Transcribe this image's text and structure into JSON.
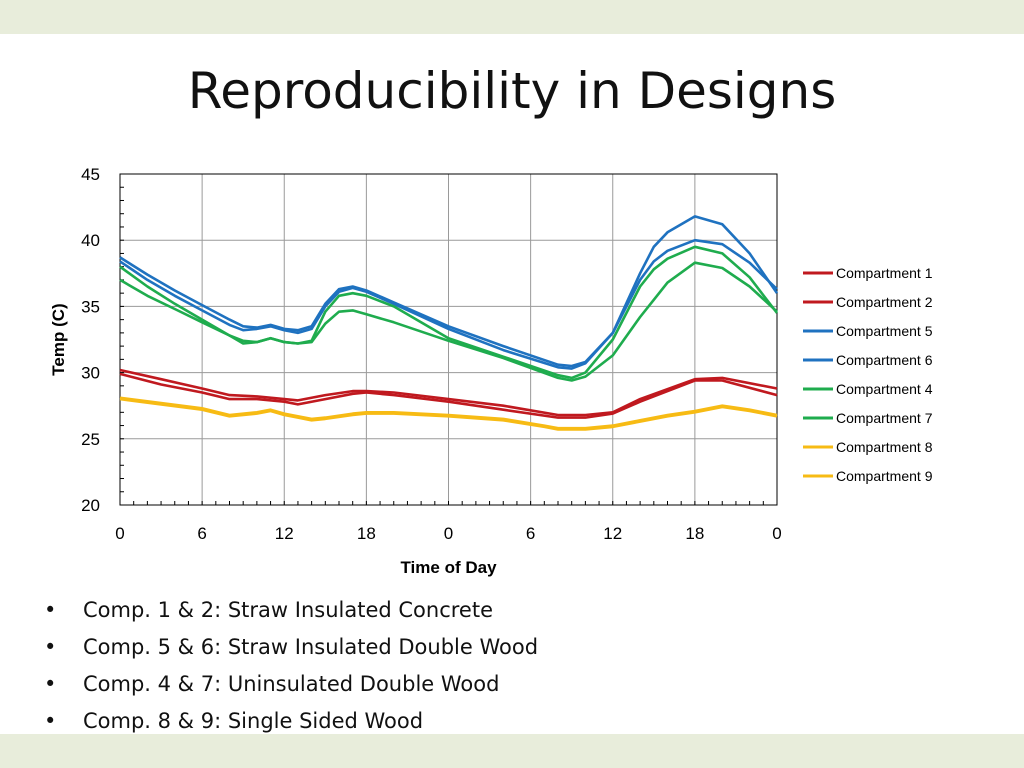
{
  "slide": {
    "title": "Reproducibility in Designs",
    "bullets": [
      "Comp. 1 & 2: Straw Insulated Concrete",
      "Comp. 5 & 6: Straw Insulated Double Wood",
      "Comp. 4 & 7: Uninsulated Double Wood",
      "Comp. 8 & 9: Single Sided Wood"
    ],
    "band_color": "#e8eddb"
  },
  "chart_data": {
    "type": "line",
    "title": "",
    "xlabel": "Time of Day",
    "ylabel": "Temp (C)",
    "xlim": [
      0,
      48
    ],
    "ylim": [
      20,
      45
    ],
    "x_ticks": [
      0,
      6,
      12,
      18,
      24,
      30,
      36,
      42,
      48
    ],
    "x_tick_labels": [
      "0",
      "6",
      "12",
      "18",
      "0",
      "6",
      "12",
      "18",
      "0"
    ],
    "y_ticks": [
      20,
      25,
      30,
      35,
      40,
      45
    ],
    "grid": true,
    "legend_position": "right",
    "series": [
      {
        "name": "Compartment 1",
        "color": "#c0191f",
        "x": [
          0,
          3,
          6,
          8,
          10,
          12,
          13,
          15,
          17,
          18,
          20,
          24,
          28,
          32,
          34,
          36,
          38,
          42,
          44,
          48
        ],
        "y": [
          30.2,
          29.5,
          28.8,
          28.3,
          28.2,
          28.0,
          27.9,
          28.3,
          28.6,
          28.6,
          28.5,
          28.0,
          27.5,
          26.8,
          26.8,
          27.0,
          28.0,
          29.5,
          29.6,
          28.8
        ]
      },
      {
        "name": "Compartment 2",
        "color": "#c0191f",
        "x": [
          0,
          3,
          6,
          8,
          10,
          12,
          13,
          15,
          17,
          18,
          20,
          24,
          28,
          32,
          34,
          36,
          38,
          42,
          44,
          48
        ],
        "y": [
          29.9,
          29.1,
          28.5,
          28.0,
          28.0,
          27.8,
          27.6,
          28.0,
          28.4,
          28.5,
          28.3,
          27.8,
          27.2,
          26.6,
          26.6,
          26.9,
          27.8,
          29.4,
          29.4,
          28.3
        ]
      },
      {
        "name": "Compartment 5",
        "color": "#1f72c0",
        "x": [
          0,
          2,
          4,
          6,
          8,
          9,
          10,
          11,
          12,
          13,
          14,
          15,
          16,
          17,
          18,
          20,
          24,
          28,
          32,
          33,
          34,
          36,
          38,
          39,
          40,
          42,
          44,
          46,
          48
        ],
        "y": [
          38.7,
          37.4,
          36.2,
          35.1,
          34.0,
          33.5,
          33.4,
          33.6,
          33.3,
          33.2,
          33.5,
          35.2,
          36.3,
          36.5,
          36.2,
          35.3,
          33.5,
          32.0,
          30.6,
          30.5,
          30.8,
          33.0,
          37.0,
          38.4,
          39.2,
          40.0,
          39.7,
          38.3,
          36.3
        ]
      },
      {
        "name": "Compartment 6",
        "color": "#1f72c0",
        "x": [
          0,
          2,
          4,
          6,
          8,
          9,
          10,
          11,
          12,
          13,
          14,
          15,
          16,
          17,
          18,
          20,
          24,
          28,
          32,
          33,
          34,
          36,
          38,
          39,
          40,
          42,
          44,
          46,
          48
        ],
        "y": [
          38.4,
          37.0,
          35.8,
          34.7,
          33.6,
          33.2,
          33.3,
          33.5,
          33.2,
          33.0,
          33.3,
          35.0,
          36.1,
          36.4,
          36.1,
          35.2,
          33.3,
          31.7,
          30.4,
          30.3,
          30.7,
          33.0,
          37.5,
          39.5,
          40.6,
          41.8,
          41.2,
          39.0,
          36.0
        ]
      },
      {
        "name": "Compartment 4",
        "color": "#1fac4e",
        "x": [
          0,
          2,
          4,
          6,
          8,
          9,
          10,
          11,
          12,
          13,
          14,
          15,
          16,
          17,
          18,
          20,
          24,
          28,
          32,
          33,
          34,
          36,
          38,
          39,
          40,
          42,
          44,
          46,
          48
        ],
        "y": [
          37.0,
          35.8,
          34.8,
          33.8,
          32.8,
          32.4,
          32.3,
          32.6,
          32.3,
          32.2,
          32.3,
          33.7,
          34.6,
          34.7,
          34.4,
          33.8,
          32.4,
          31.1,
          29.6,
          29.4,
          29.7,
          31.3,
          34.2,
          35.5,
          36.8,
          38.3,
          37.9,
          36.5,
          34.6
        ]
      },
      {
        "name": "Compartment 7",
        "color": "#1fac4e",
        "x": [
          0,
          2,
          4,
          6,
          8,
          9,
          10,
          11,
          12,
          13,
          14,
          15,
          16,
          17,
          18,
          20,
          24,
          28,
          32,
          33,
          34,
          36,
          38,
          39,
          40,
          42,
          44,
          46,
          48
        ],
        "y": [
          38.0,
          36.5,
          35.2,
          34.0,
          32.8,
          32.2,
          32.3,
          32.6,
          32.3,
          32.2,
          32.4,
          34.6,
          35.8,
          36.0,
          35.8,
          35.0,
          32.6,
          31.2,
          29.8,
          29.6,
          30.0,
          32.5,
          36.5,
          37.8,
          38.6,
          39.5,
          39.0,
          37.2,
          34.5
        ]
      },
      {
        "name": "Compartment 8",
        "color": "#f7bb14",
        "x": [
          0,
          3,
          6,
          8,
          10,
          11,
          12,
          13,
          14,
          15,
          17,
          18,
          20,
          24,
          28,
          31,
          32,
          34,
          36,
          38,
          40,
          42,
          44,
          46,
          48
        ],
        "y": [
          28.1,
          27.7,
          27.3,
          26.8,
          27.0,
          27.2,
          26.9,
          26.7,
          26.5,
          26.6,
          26.9,
          27.0,
          27.0,
          26.8,
          26.5,
          26.0,
          25.8,
          25.8,
          26.0,
          26.4,
          26.8,
          27.1,
          27.5,
          27.2,
          26.8
        ]
      },
      {
        "name": "Compartment 9",
        "color": "#f7bb14",
        "x": [
          0,
          3,
          6,
          8,
          10,
          11,
          12,
          13,
          14,
          15,
          17,
          18,
          20,
          24,
          28,
          31,
          32,
          34,
          36,
          38,
          40,
          42,
          44,
          46,
          48
        ],
        "y": [
          28.0,
          27.6,
          27.2,
          26.7,
          26.9,
          27.1,
          26.8,
          26.6,
          26.4,
          26.5,
          26.8,
          26.9,
          26.9,
          26.7,
          26.4,
          25.9,
          25.7,
          25.7,
          25.9,
          26.3,
          26.7,
          27.0,
          27.4,
          27.1,
          26.7
        ]
      }
    ]
  }
}
